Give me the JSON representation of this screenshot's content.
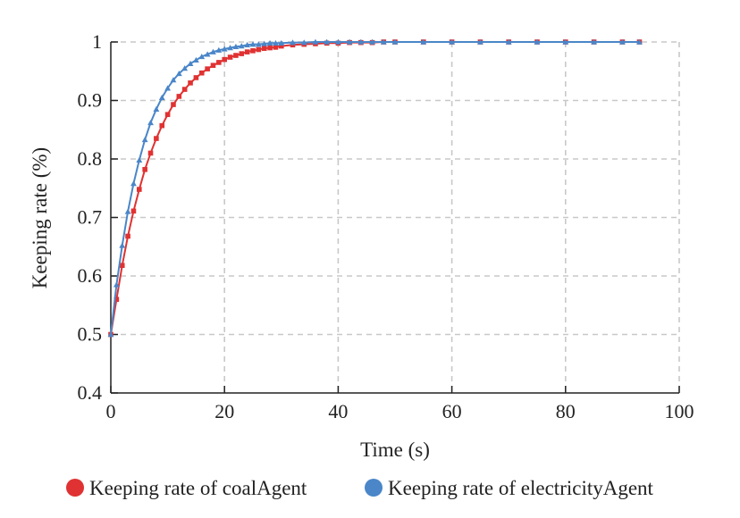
{
  "chart_data": {
    "type": "line",
    "title": "",
    "xlabel": "Time (s)",
    "ylabel": "Keeping rate (%)",
    "xlim": [
      0,
      100
    ],
    "ylim": [
      0.4,
      1
    ],
    "xticks": [
      0,
      20,
      40,
      60,
      80,
      100
    ],
    "yticks": [
      0.4,
      0.5,
      0.6,
      0.7,
      0.8,
      0.9,
      1
    ],
    "ytick_labels": [
      "0.4",
      "0.5",
      "0.6",
      "0.7",
      "0.8",
      "0.9",
      "1"
    ],
    "xtick_labels": [
      "0",
      "20",
      "40",
      "60",
      "80",
      "100"
    ],
    "grid": true,
    "legend_position": "bottom",
    "series": [
      {
        "name": "Keeping rate of coalAgent",
        "color": "#e03232",
        "marker": "square",
        "x": [
          0,
          1,
          2,
          3,
          4,
          5,
          6,
          7,
          8,
          9,
          10,
          11,
          12,
          13,
          14,
          15,
          16,
          17,
          18,
          19,
          20,
          21,
          22,
          23,
          24,
          25,
          26,
          27,
          28,
          29,
          30,
          32,
          34,
          36,
          38,
          40,
          42,
          44,
          46,
          48,
          50,
          55,
          60,
          65,
          70,
          75,
          80,
          85,
          90,
          93
        ],
        "y": [
          0.5,
          0.56,
          0.618,
          0.668,
          0.711,
          0.748,
          0.782,
          0.81,
          0.835,
          0.857,
          0.876,
          0.893,
          0.907,
          0.919,
          0.93,
          0.939,
          0.947,
          0.954,
          0.96,
          0.965,
          0.97,
          0.974,
          0.977,
          0.98,
          0.983,
          0.985,
          0.987,
          0.989,
          0.99,
          0.991,
          0.993,
          0.995,
          0.996,
          0.997,
          0.998,
          0.998,
          0.999,
          0.999,
          0.999,
          1.0,
          1.0,
          1.0,
          1.0,
          1.0,
          1.0,
          1.0,
          1.0,
          1.0,
          1.0,
          1.0
        ]
      },
      {
        "name": "Keeping rate of electricityAgent",
        "color": "#4a86c8",
        "marker": "triangle",
        "x": [
          0,
          1,
          2,
          3,
          4,
          5,
          6,
          7,
          8,
          9,
          10,
          11,
          12,
          13,
          14,
          15,
          16,
          17,
          18,
          19,
          20,
          21,
          22,
          23,
          24,
          25,
          26,
          27,
          28,
          29,
          30,
          32,
          34,
          36,
          38,
          40,
          42,
          44,
          46,
          48,
          50,
          55,
          60,
          65,
          70,
          75,
          80,
          85,
          90,
          93
        ],
        "y": [
          0.5,
          0.585,
          0.652,
          0.71,
          0.758,
          0.798,
          0.833,
          0.862,
          0.885,
          0.905,
          0.921,
          0.935,
          0.946,
          0.955,
          0.963,
          0.969,
          0.975,
          0.979,
          0.983,
          0.986,
          0.988,
          0.99,
          0.992,
          0.993,
          0.995,
          0.996,
          0.996,
          0.997,
          0.998,
          0.998,
          0.998,
          0.999,
          0.999,
          1.0,
          1.0,
          1.0,
          1.0,
          1.0,
          1.0,
          1.0,
          1.0,
          1.0,
          1.0,
          1.0,
          1.0,
          1.0,
          1.0,
          1.0,
          1.0,
          1.0
        ]
      }
    ]
  }
}
